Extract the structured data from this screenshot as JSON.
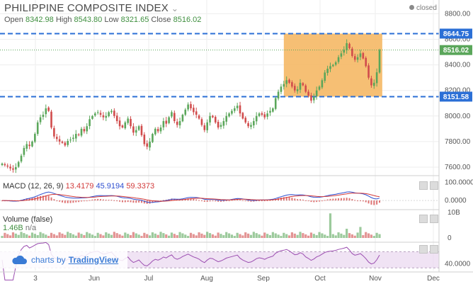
{
  "header": {
    "title": "PHILIPPINE COMPOSITE INDEX",
    "open_label": "Open",
    "open": "8342.98",
    "high_label": "High",
    "high": "8543.80",
    "low_label": "Low",
    "low": "8321.65",
    "close_label": "Close",
    "close": "8516.02",
    "status": "closed"
  },
  "colors": {
    "up": "#5aa65a",
    "down": "#d14c4c",
    "highlight_box": "#f5b865",
    "dashed_level": "#2b6fd6",
    "macd_line": "#2e4fd0",
    "signal_line": "#d23a3a",
    "rsi_line": "#9b4db0",
    "rsi_band": "#ead7f0"
  },
  "chart_data": {
    "type": "candlestick",
    "x_axis": {
      "tick_labels": [
        "3",
        "Jun",
        "Jul",
        "Aug",
        "Sep",
        "Oct",
        "Nov",
        "Dec"
      ]
    },
    "price_axis": {
      "tick_labels": [
        "8800.00",
        "8600.00",
        "8400.00",
        "8200.00",
        "8000.00",
        "7800.00",
        "7600.00"
      ],
      "range": [
        7550,
        8880
      ]
    },
    "levels": [
      {
        "label": "8644.75",
        "value": 8644.75,
        "style": "dashed"
      },
      {
        "label": "8151.58",
        "value": 8151.58,
        "style": "dashed"
      },
      {
        "label": "8516.02",
        "value": 8516.02,
        "style": "dotted"
      }
    ],
    "highlight_box": {
      "x_from": 103,
      "x_to": 139,
      "y_from": 8151.58,
      "y_to": 8644.75
    },
    "series": [
      {
        "name": "PHILIPPINE COMPOSITE INDEX",
        "closes": [
          7628,
          7615,
          7605,
          7590,
          7580,
          7600,
          7640,
          7690,
          7750,
          7780,
          7765,
          7800,
          7860,
          7950,
          7990,
          8010,
          8060,
          8040,
          7910,
          7840,
          7820,
          7800,
          7790,
          7770,
          7805,
          7815,
          7830,
          7860,
          7850,
          7900,
          7880,
          7920,
          7975,
          8000,
          8020,
          8030,
          8010,
          7990,
          8000,
          8030,
          8040,
          8000,
          7960,
          7920,
          7910,
          7950,
          7980,
          7920,
          7870,
          7890,
          7920,
          7850,
          7780,
          7760,
          7800,
          7860,
          7900,
          7880,
          7910,
          7960,
          7940,
          7990,
          8030,
          7960,
          7930,
          7960,
          8010,
          8050,
          8090,
          8060,
          8030,
          8010,
          7980,
          7930,
          7890,
          7950,
          8000,
          7990,
          7950,
          7910,
          7930,
          7960,
          8000,
          8020,
          8040,
          8060,
          8080,
          8020,
          7980,
          7950,
          7920,
          7930,
          7960,
          8000,
          8020,
          8010,
          7990,
          8020,
          8040,
          8060,
          8140,
          8190,
          8230,
          8250,
          8280,
          8260,
          8230,
          8200,
          8210,
          8260,
          8240,
          8190,
          8160,
          8120,
          8150,
          8200,
          8230,
          8280,
          8340,
          8370,
          8390,
          8400,
          8420,
          8460,
          8490,
          8520,
          8570,
          8530,
          8470,
          8440,
          8460,
          8490,
          8450,
          8390,
          8300,
          8240,
          8260,
          8342,
          8516
        ]
      }
    ],
    "macd": {
      "label": "MACD (12, 26, 9)",
      "values_label": [
        "13.4179",
        "45.9194",
        "59.3373"
      ],
      "axis_labels": [
        "100.0000",
        "0.0000"
      ],
      "range": [
        -35,
        130
      ]
    },
    "volume": {
      "label": "Volume (false)",
      "value": "1.46B",
      "value_suffix": "n/a",
      "axis_labels": [
        "10B",
        "0"
      ],
      "range": [
        0,
        10.5
      ]
    },
    "rsi": {
      "axis_labels": [
        "40.0000"
      ],
      "range": [
        20,
        90
      ],
      "band": [
        30,
        70
      ]
    }
  },
  "branding": {
    "text": "charts by",
    "brand": "TradingView"
  }
}
